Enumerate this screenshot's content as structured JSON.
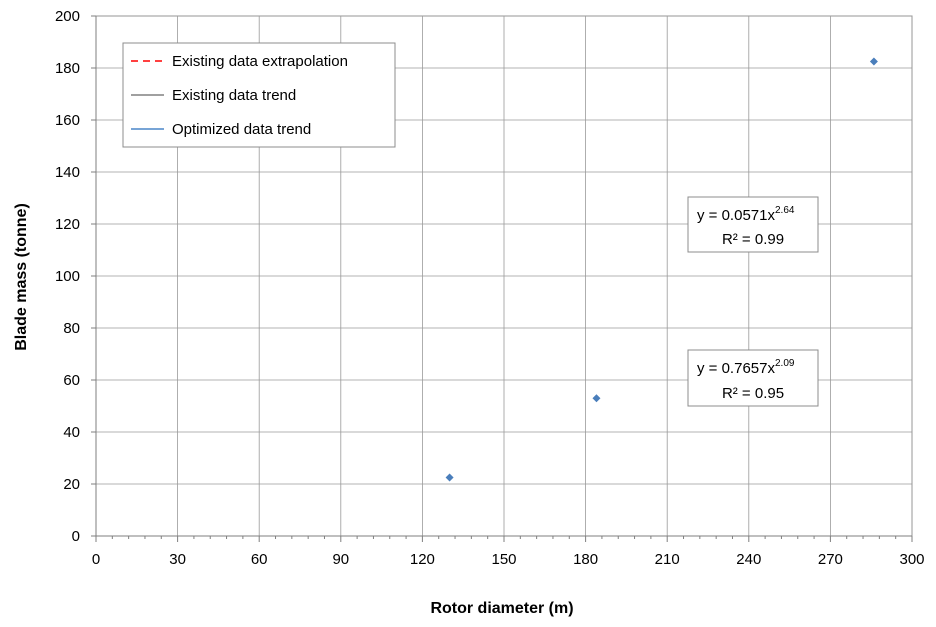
{
  "chart_data": {
    "type": "scatter",
    "xlabel": "Rotor diameter (m)",
    "ylabel": "Blade mass (tonne)",
    "xlim": [
      0,
      300
    ],
    "ylim": [
      0,
      200
    ],
    "xticks": [
      0,
      30,
      60,
      90,
      120,
      150,
      180,
      210,
      240,
      270,
      300
    ],
    "yticks": [
      0,
      20,
      40,
      60,
      80,
      100,
      120,
      140,
      160,
      180,
      200
    ],
    "grid": true,
    "legend_position": "top-left",
    "series": [
      {
        "name": "Existing data extrapolation",
        "kind": "power-fit",
        "a": 0.7657,
        "b": 2.09,
        "x_range": [
          126,
          286
        ],
        "color": "#ff0000",
        "dash": "dashed"
      },
      {
        "name": "Existing data trend",
        "kind": "power-fit",
        "a": 0.7657,
        "b": 2.09,
        "x_range": [
          23,
          126
        ],
        "color": "#808080",
        "dash": "solid"
      },
      {
        "name": "Optimized data trend",
        "kind": "power-fit",
        "a": 0.0571,
        "b": 2.64,
        "x_range": [
          130,
          286
        ],
        "color": "#4a86c8",
        "dash": "solid"
      }
    ],
    "points": {
      "color": "#4a7ebb",
      "x": [
        130,
        184,
        286
      ],
      "y": [
        22.5,
        53,
        182.5
      ]
    },
    "annotations": [
      {
        "eq_prefix": "y = 0.0571x",
        "eq_exp": "2.64",
        "r2": "R² = 0.99"
      },
      {
        "eq_prefix": "y = 0.7657x",
        "eq_exp": "2.09",
        "r2": "R² = 0.95"
      }
    ]
  }
}
